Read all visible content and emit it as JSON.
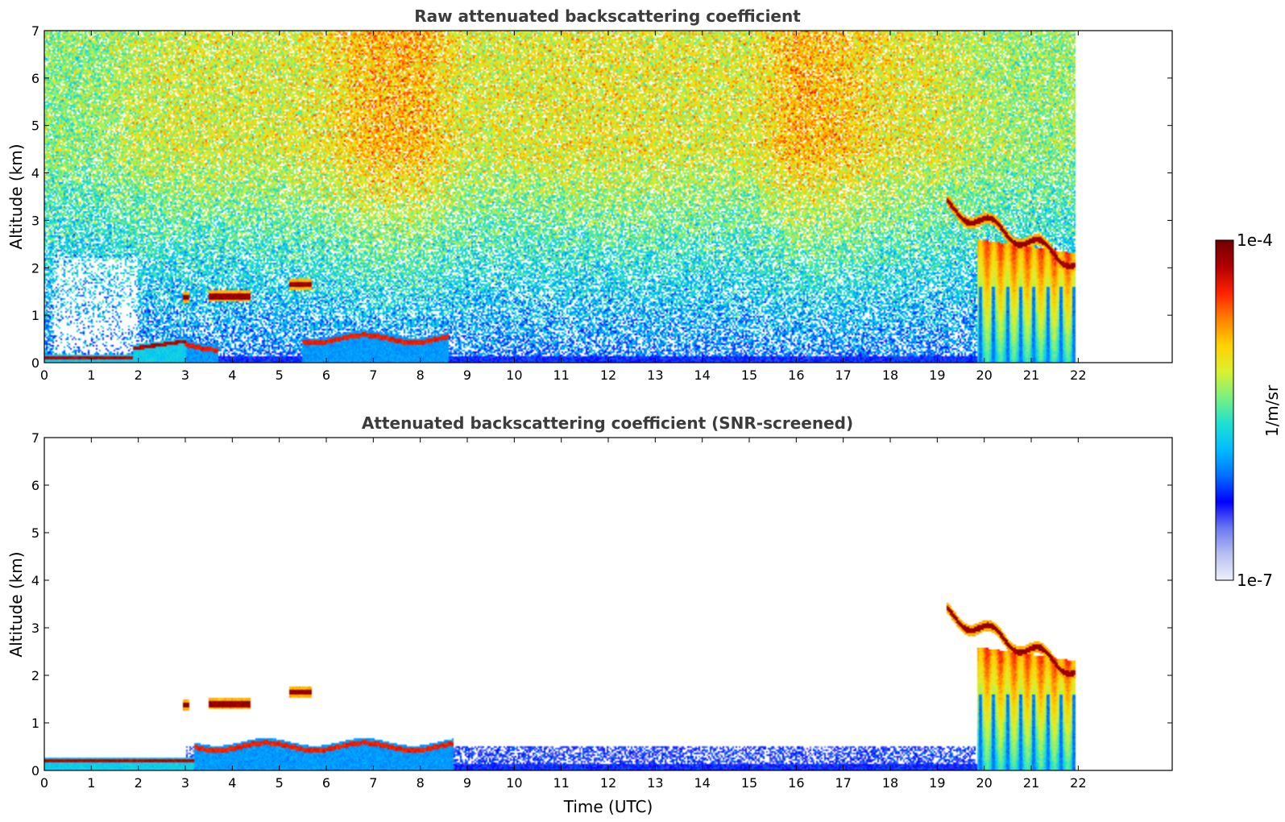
{
  "chart_data": [
    {
      "type": "heatmap",
      "title": "Raw attenuated backscattering coefficient",
      "xlabel": "",
      "ylabel": "Altitude (km)",
      "xlim": [
        0,
        24
      ],
      "ylim": [
        0,
        7
      ],
      "xticks": [
        0,
        1,
        2,
        3,
        4,
        5,
        6,
        7,
        8,
        9,
        10,
        11,
        12,
        13,
        14,
        15,
        16,
        17,
        18,
        19,
        20,
        21,
        22
      ],
      "yticks": [
        0,
        1,
        2,
        3,
        4,
        5,
        6,
        7
      ],
      "data_end_time": 21.95,
      "noise_signal_by_hour": [
        0.55,
        0.55,
        0.6,
        0.62,
        0.62,
        0.62,
        0.65,
        0.72,
        0.72,
        0.63,
        0.63,
        0.64,
        0.64,
        0.64,
        0.63,
        0.63,
        0.72,
        0.7,
        0.65,
        0.63,
        0.58,
        0.56,
        0.56
      ],
      "features": [
        {
          "kind": "boundary-layer",
          "t_start": 0,
          "t_end": 1.9,
          "alt_km": 0.1
        },
        {
          "kind": "boundary-layer",
          "t_start": 1.9,
          "t_end": 3.0,
          "alt_km": 0.3
        },
        {
          "kind": "aerosol-layer",
          "t_start": 3.0,
          "t_end": 3.7,
          "alt_km": 0.35
        },
        {
          "kind": "cloud",
          "t_start": 2.95,
          "t_end": 3.1,
          "alt_km": 1.38
        },
        {
          "kind": "cloud",
          "t_start": 3.5,
          "t_end": 4.4,
          "alt_km": 1.4
        },
        {
          "kind": "cloud",
          "t_start": 5.2,
          "t_end": 5.7,
          "alt_km": 1.65
        },
        {
          "kind": "aerosol-layer",
          "t_start": 5.5,
          "t_end": 8.6,
          "alt_km": 0.5
        },
        {
          "kind": "cloud",
          "t_start": 19.2,
          "t_end": 21.95,
          "alt_km": 2.4
        },
        {
          "kind": "precipitation",
          "t_start": 19.85,
          "t_end": 21.95,
          "alt_km": 1.2
        }
      ]
    },
    {
      "type": "heatmap",
      "title": "Attenuated backscattering coefficient (SNR-screened)",
      "xlabel": "Time (UTC)",
      "ylabel": "Altitude (km)",
      "xlim": [
        0,
        24
      ],
      "ylim": [
        0,
        7
      ],
      "xticks": [
        0,
        1,
        2,
        3,
        4,
        5,
        6,
        7,
        8,
        9,
        10,
        11,
        12,
        13,
        14,
        15,
        16,
        17,
        18,
        19,
        20,
        21,
        22
      ],
      "yticks": [
        0,
        1,
        2,
        3,
        4,
        5,
        6,
        7
      ],
      "data_end_time": 21.95,
      "features": [
        {
          "kind": "boundary-layer",
          "t_start": 0,
          "t_end": 3.2,
          "alt_km": 0.2
        },
        {
          "kind": "aerosol-layer",
          "t_start": 3.2,
          "t_end": 8.7,
          "alt_km": 0.5
        },
        {
          "kind": "cloud",
          "t_start": 2.95,
          "t_end": 3.1,
          "alt_km": 1.38
        },
        {
          "kind": "cloud",
          "t_start": 3.5,
          "t_end": 4.4,
          "alt_km": 1.4
        },
        {
          "kind": "cloud",
          "t_start": 5.2,
          "t_end": 5.7,
          "alt_km": 1.65
        },
        {
          "kind": "cloud",
          "t_start": 19.2,
          "t_end": 21.95,
          "alt_km": 2.4
        },
        {
          "kind": "precipitation",
          "t_start": 19.85,
          "t_end": 21.95,
          "alt_km": 1.2
        }
      ]
    }
  ],
  "colorbar": {
    "max_label": "1e-4",
    "min_label": "1e-7",
    "unit_label": "1/m/sr",
    "scale": "log",
    "stops": [
      "#eef0fb",
      "#b8bff0",
      "#6b78f0",
      "#0000ff",
      "#0070ff",
      "#00bcff",
      "#20e0d0",
      "#7cf080",
      "#dcf030",
      "#ffd000",
      "#ff8000",
      "#ff2000",
      "#b00000",
      "#700000"
    ]
  }
}
